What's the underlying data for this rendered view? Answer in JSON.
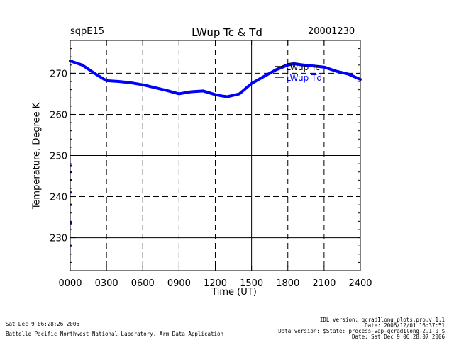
{
  "chart_data": {
    "type": "line",
    "title": "LWup Tc & Td",
    "site": "sqpE15",
    "date": "20001230",
    "xlabel": "Time (UT)",
    "ylabel": "Temperature, Degree K",
    "xlim": [
      0,
      2400
    ],
    "ylim": [
      222,
      278
    ],
    "x_ticks": [
      "0000",
      "0300",
      "0600",
      "0900",
      "1200",
      "1500",
      "1800",
      "2100",
      "2400"
    ],
    "y_ticks": [
      230,
      240,
      250,
      260,
      270
    ],
    "grid": true,
    "legend_position": "top-right",
    "series": [
      {
        "name": "LWup Tc",
        "color": "#000000",
        "x": [
          0,
          100,
          200,
          300,
          400,
          500,
          600,
          700,
          800,
          900,
          1000,
          1100,
          1200,
          1250,
          1300,
          1400,
          1500,
          1600,
          1700,
          1800,
          1850,
          1900,
          2000,
          2100,
          2200,
          2300,
          2400
        ],
        "y": [
          273,
          272,
          270,
          268.2,
          268,
          267.7,
          267.2,
          266.5,
          265.8,
          265,
          265.5,
          265.7,
          264.8,
          264.5,
          264.3,
          265,
          267.5,
          269.2,
          271,
          272.3,
          272.5,
          272.3,
          271.8,
          271.5,
          270.5,
          269.8,
          268.5
        ]
      },
      {
        "name": "LWup Td",
        "color": "#0000ff",
        "x": [
          0,
          100,
          200,
          300,
          400,
          500,
          600,
          700,
          800,
          900,
          1000,
          1100,
          1200,
          1250,
          1300,
          1400,
          1500,
          1600,
          1700,
          1800,
          1850,
          1900,
          2000,
          2100,
          2200,
          2300,
          2400
        ],
        "y": [
          273,
          272,
          270,
          268.2,
          268,
          267.7,
          267.2,
          266.5,
          265.8,
          265,
          265.5,
          265.7,
          264.8,
          264.5,
          264.3,
          265,
          267.5,
          269.2,
          270.8,
          272,
          272.3,
          272.1,
          271.8,
          271.5,
          270.5,
          269.8,
          268.5
        ],
        "scatter_x": [
          5,
          5,
          5,
          5,
          5,
          5,
          5
        ],
        "scatter_y": [
          247.5,
          246,
          244,
          241,
          238,
          233.5,
          228
        ]
      }
    ]
  },
  "footer": {
    "left_line1": "Sat Dec  9 06:28:26 2006",
    "left_line2": "Battelle Pacific Northwest National Laboratory, Arm Data Application",
    "right_line1": "IDL version: qcrad1long_plots.pro,v 1.1",
    "right_line2": "Date: 2006/12/01 16:37:51",
    "right_line3": "Data version: $State: process-vap-qcrad1long-2.1-0 $",
    "right_line4": "Date: Sat Dec  9 06:28:07 2006"
  }
}
